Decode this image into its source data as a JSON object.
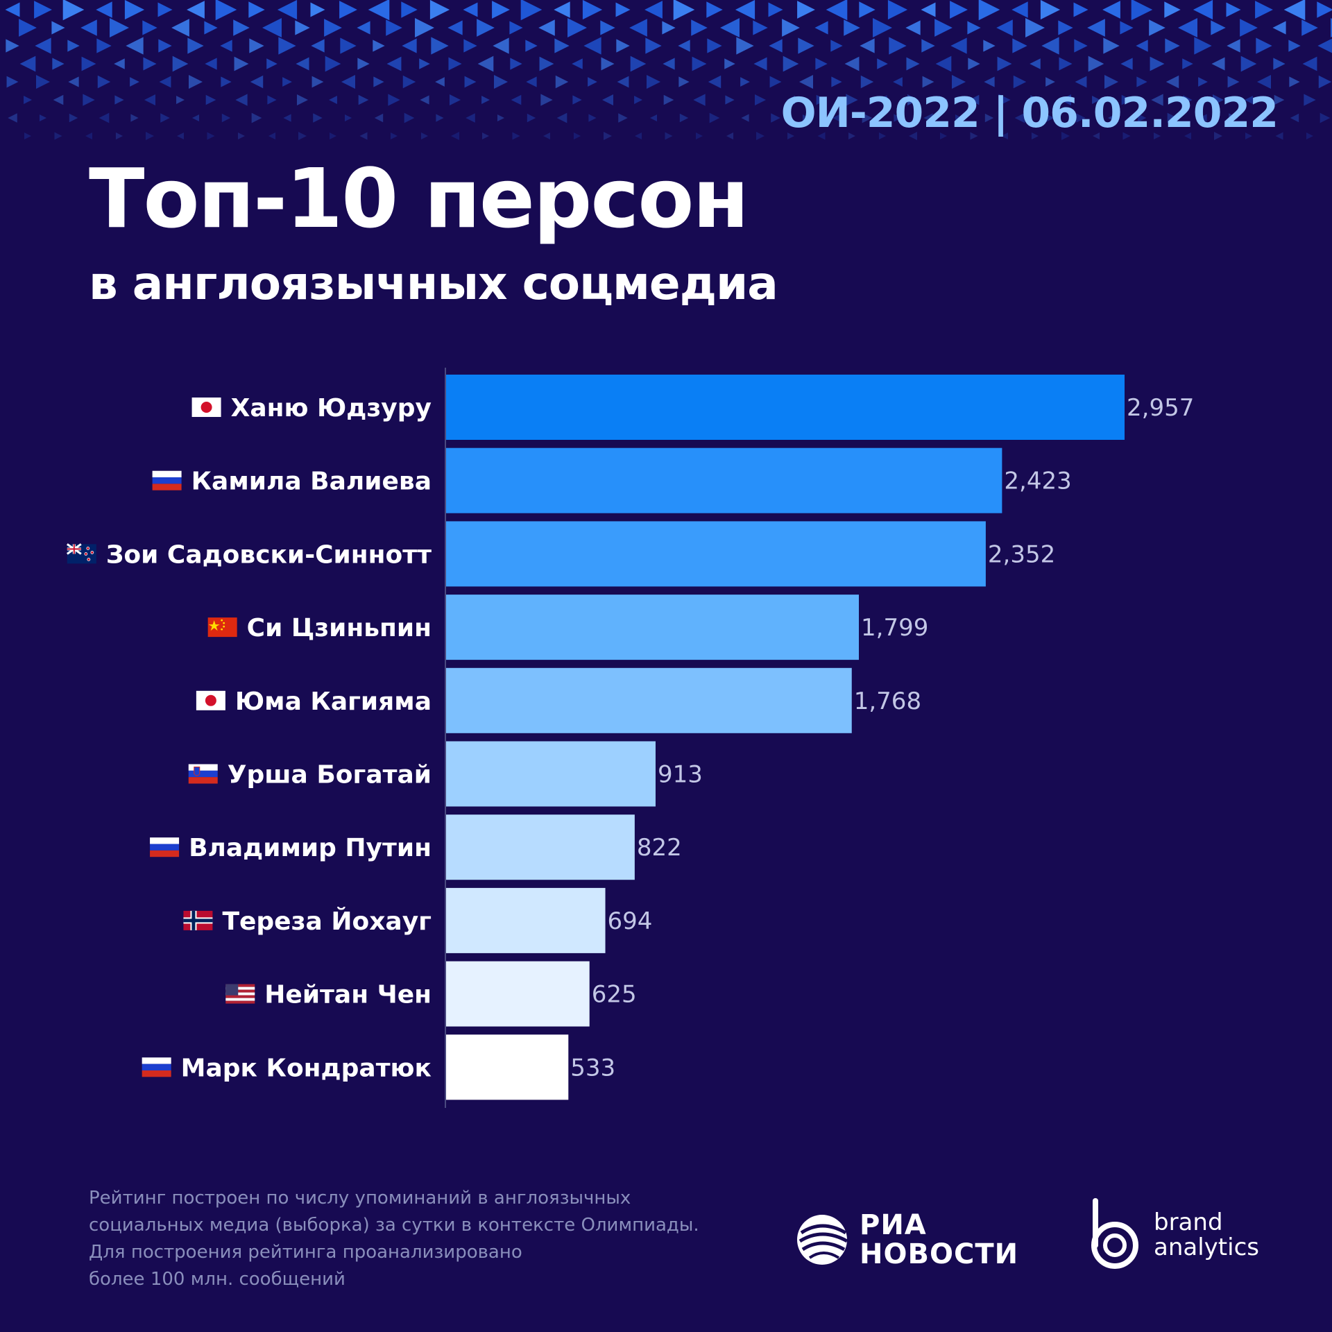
{
  "header": {
    "tag": "ОИ-2022 | 06.02.2022",
    "title": "Топ-10 персон",
    "subtitle": "в англоязычных соцмедиа"
  },
  "chart_data": {
    "type": "bar",
    "orientation": "horizontal",
    "title": "Топ-10 персон",
    "subtitle": "в англоязычных соцмедиа",
    "categories": [
      "Ханю Юдзуру",
      "Камила Валиева",
      "Зои Садовски-Синнотт",
      "Си Цзиньпин",
      "Юма Кагияма",
      "Урша Богатай",
      "Владимир Путин",
      "Тереза Йохауг",
      "Нейтан Чен",
      "Марк Кондратюк"
    ],
    "flags": [
      "japan-flag-icon",
      "russia-flag-icon",
      "new-zealand-flag-icon",
      "china-flag-icon",
      "japan-flag-icon",
      "slovenia-flag-icon",
      "russia-flag-icon",
      "norway-flag-icon",
      "usa-flag-icon",
      "russia-flag-icon"
    ],
    "values": [
      2957,
      2423,
      2352,
      1799,
      1768,
      913,
      822,
      694,
      625,
      533
    ],
    "value_labels": [
      "2,957",
      "2,423",
      "2,352",
      "1,799",
      "1,768",
      "913",
      "822",
      "694",
      "625",
      "533"
    ],
    "bar_colors": [
      "#0a7ff5",
      "#2790fa",
      "#3a9cfc",
      "#60b2fd",
      "#7dc0fe",
      "#9dd0ff",
      "#b7dcff",
      "#d0e8ff",
      "#e6f2ff",
      "#ffffff"
    ],
    "xlim": [
      0,
      2957
    ],
    "grid": false,
    "legend": "none"
  },
  "footnote": {
    "lines": [
      "Рейтинг построен по числу упоминаний в англоязычных",
      "социальных медиа (выборка) за сутки в контексте Олимпиады.",
      "Для построения рейтинга проанализировано",
      "более 100 млн. сообщений"
    ]
  },
  "logos": {
    "ria_line1": "РИА",
    "ria_line2": "НОВОСТИ",
    "brand_line1": "brand",
    "brand_line2": "analytics"
  },
  "colors": {
    "background": "#170a52",
    "accent": "#8cc4ff",
    "pattern": "#2a6be6"
  }
}
